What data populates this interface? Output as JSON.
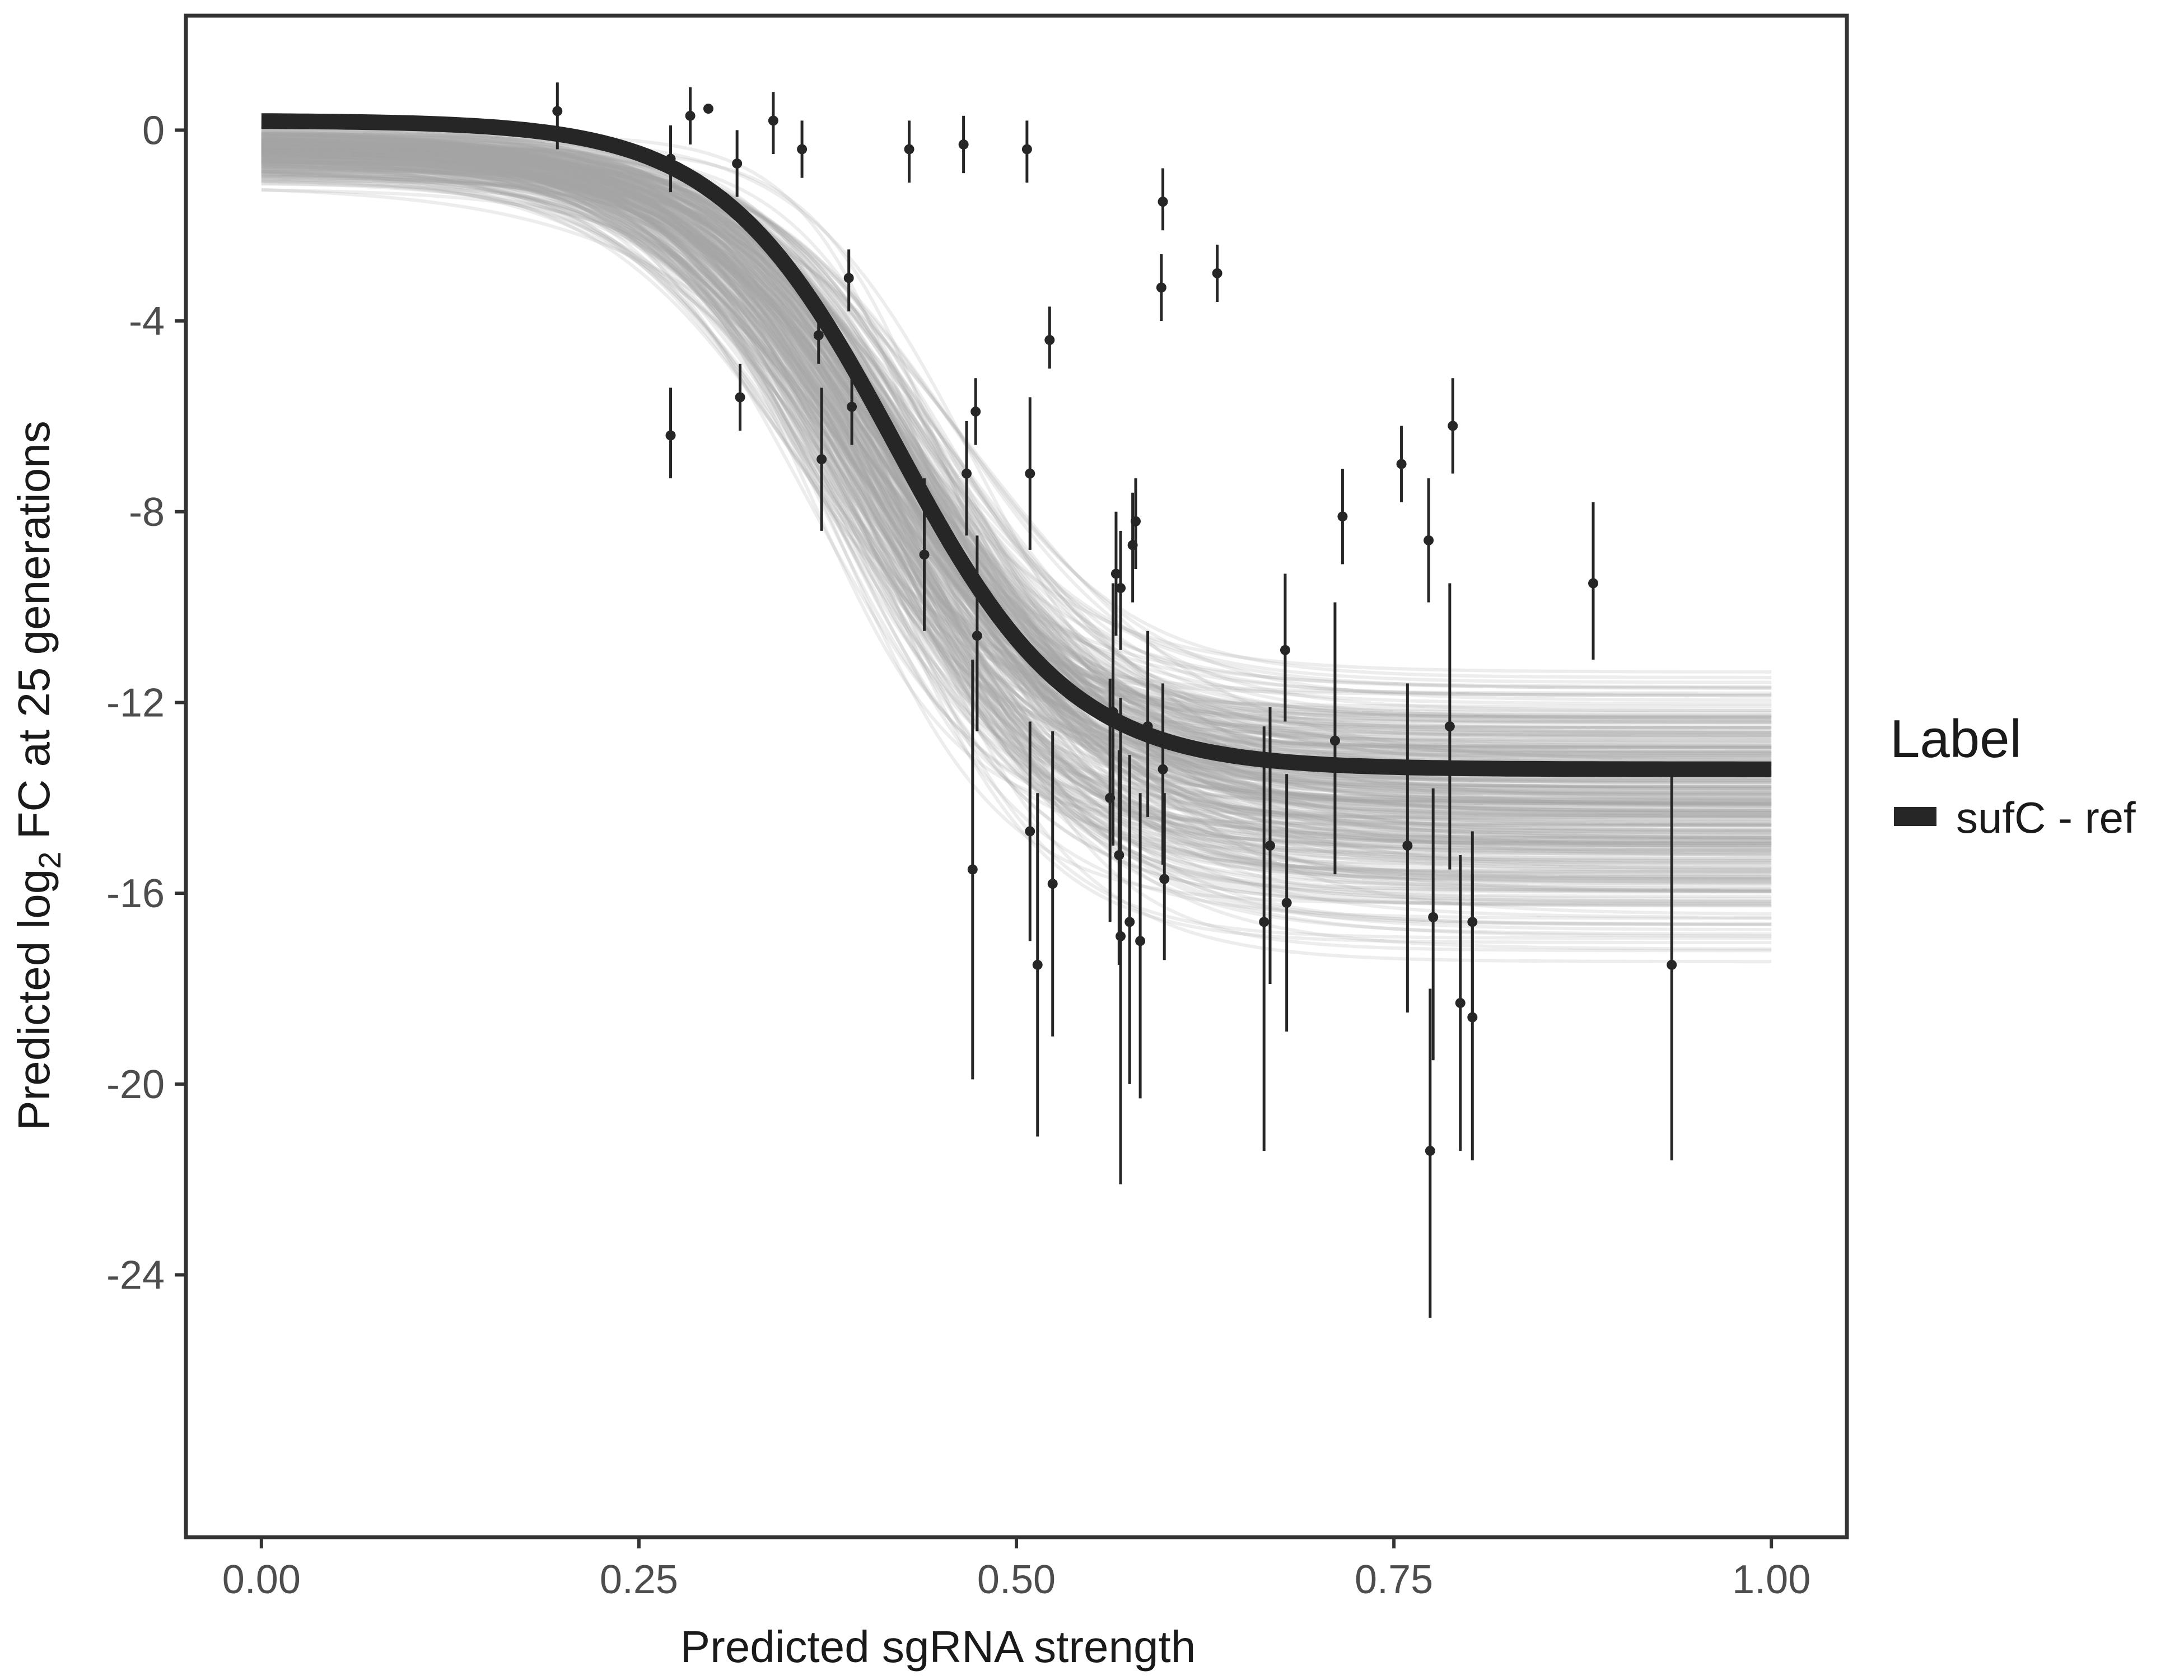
{
  "chart_data": {
    "type": "scatter",
    "xlabel": "Predicted sgRNA strength",
    "ylabel": {
      "prefix": "Predicted  log",
      "subscript": "2",
      "suffix": " FC at 25 generations"
    },
    "xlim": [
      -0.05,
      1.05
    ],
    "ylim": [
      -29.5,
      2.4
    ],
    "x_ticks": [
      {
        "value": 0.0,
        "label": "0.00"
      },
      {
        "value": 0.25,
        "label": "0.25"
      },
      {
        "value": 0.5,
        "label": "0.50"
      },
      {
        "value": 0.75,
        "label": "0.75"
      },
      {
        "value": 1.0,
        "label": "1.00"
      }
    ],
    "y_ticks": [
      {
        "value": 0,
        "label": "0"
      },
      {
        "value": -4,
        "label": "-4"
      },
      {
        "value": -8,
        "label": "-8"
      },
      {
        "value": -12,
        "label": "-12"
      },
      {
        "value": -16,
        "label": "-16"
      },
      {
        "value": -20,
        "label": "-20"
      },
      {
        "value": -24,
        "label": "-24"
      }
    ],
    "grid": false,
    "legend": {
      "title": "Label",
      "position": "right",
      "entries": [
        {
          "label": "sufC - ref",
          "color": "#262626"
        }
      ]
    },
    "colors": {
      "fit_line": "#262626",
      "posterior_draws": "#a6a6a6",
      "points": "#262626",
      "frame": "#333333"
    },
    "fit_curve": {
      "form": "logistic",
      "upper": 0.2,
      "lower": -13.4,
      "midpoint": 0.42,
      "scale": 0.058
    },
    "posterior_draws": {
      "count": 300,
      "upper_range": [
        -2.4,
        0.35
      ],
      "lower_range": [
        -18.6,
        -9.9
      ],
      "midpoint_range": [
        0.33,
        0.5
      ],
      "scale_range": [
        0.035,
        0.095
      ]
    },
    "points": [
      {
        "x": 0.196,
        "y": 0.4,
        "lo": -0.4,
        "hi": 1.0
      },
      {
        "x": 0.271,
        "y": -0.6,
        "lo": -1.3,
        "hi": 0.1
      },
      {
        "x": 0.271,
        "y": -6.4,
        "lo": -7.3,
        "hi": -5.4
      },
      {
        "x": 0.284,
        "y": 0.3,
        "lo": -0.3,
        "hi": 0.9
      },
      {
        "x": 0.296,
        "y": 0.45,
        "lo": 0.45,
        "hi": 0.45
      },
      {
        "x": 0.315,
        "y": -0.7,
        "lo": -1.4,
        "hi": 0.0
      },
      {
        "x": 0.317,
        "y": -5.6,
        "lo": -6.3,
        "hi": -4.9
      },
      {
        "x": 0.339,
        "y": 0.2,
        "lo": -0.5,
        "hi": 0.8
      },
      {
        "x": 0.358,
        "y": -0.4,
        "lo": -1.0,
        "hi": 0.2
      },
      {
        "x": 0.369,
        "y": -4.3,
        "lo": -4.9,
        "hi": -3.6
      },
      {
        "x": 0.371,
        "y": -6.9,
        "lo": -8.4,
        "hi": -5.4
      },
      {
        "x": 0.389,
        "y": -3.1,
        "lo": -3.8,
        "hi": -2.5
      },
      {
        "x": 0.391,
        "y": -5.8,
        "lo": -6.6,
        "hi": -5.1
      },
      {
        "x": 0.429,
        "y": -0.4,
        "lo": -1.1,
        "hi": 0.2
      },
      {
        "x": 0.439,
        "y": -8.9,
        "lo": -10.5,
        "hi": -7.3
      },
      {
        "x": 0.465,
        "y": -0.3,
        "lo": -0.9,
        "hi": 0.3
      },
      {
        "x": 0.467,
        "y": -7.2,
        "lo": -8.5,
        "hi": -6.1
      },
      {
        "x": 0.471,
        "y": -15.5,
        "lo": -19.9,
        "hi": -11.1
      },
      {
        "x": 0.473,
        "y": -5.9,
        "lo": -6.6,
        "hi": -5.2
      },
      {
        "x": 0.474,
        "y": -10.6,
        "lo": -12.6,
        "hi": -8.5
      },
      {
        "x": 0.507,
        "y": -0.4,
        "lo": -1.1,
        "hi": 0.2
      },
      {
        "x": 0.509,
        "y": -7.2,
        "lo": -8.8,
        "hi": -5.6
      },
      {
        "x": 0.509,
        "y": -14.7,
        "lo": -17.0,
        "hi": -12.4
      },
      {
        "x": 0.514,
        "y": -17.5,
        "lo": -21.1,
        "hi": -13.9
      },
      {
        "x": 0.522,
        "y": -4.4,
        "lo": -5.0,
        "hi": -3.7
      },
      {
        "x": 0.524,
        "y": -15.8,
        "lo": -19.0,
        "hi": -12.6
      },
      {
        "x": 0.562,
        "y": -14.0,
        "lo": -16.6,
        "hi": -11.5
      },
      {
        "x": 0.564,
        "y": -12.2,
        "lo": -15.0,
        "hi": -9.5
      },
      {
        "x": 0.566,
        "y": -9.3,
        "lo": -10.6,
        "hi": -8.0
      },
      {
        "x": 0.568,
        "y": -15.2,
        "lo": -17.5,
        "hi": -13.0
      },
      {
        "x": 0.569,
        "y": -16.9,
        "lo": -22.1,
        "hi": -11.9
      },
      {
        "x": 0.569,
        "y": -9.6,
        "lo": -10.9,
        "hi": -8.4
      },
      {
        "x": 0.575,
        "y": -16.6,
        "lo": -20.0,
        "hi": -13.1
      },
      {
        "x": 0.577,
        "y": -8.7,
        "lo": -9.9,
        "hi": -7.6
      },
      {
        "x": 0.579,
        "y": -8.2,
        "lo": -9.2,
        "hi": -7.3
      },
      {
        "x": 0.582,
        "y": -17.0,
        "lo": -20.3,
        "hi": -13.9
      },
      {
        "x": 0.587,
        "y": -12.5,
        "lo": -14.4,
        "hi": -10.5
      },
      {
        "x": 0.596,
        "y": -3.3,
        "lo": -4.0,
        "hi": -2.6
      },
      {
        "x": 0.597,
        "y": -1.5,
        "lo": -2.1,
        "hi": -0.8
      },
      {
        "x": 0.597,
        "y": -13.4,
        "lo": -15.4,
        "hi": -11.6
      },
      {
        "x": 0.598,
        "y": -15.7,
        "lo": -17.4,
        "hi": -13.9
      },
      {
        "x": 0.633,
        "y": -3.0,
        "lo": -3.6,
        "hi": -2.4
      },
      {
        "x": 0.664,
        "y": -16.6,
        "lo": -21.4,
        "hi": -12.5
      },
      {
        "x": 0.668,
        "y": -15.0,
        "lo": -17.9,
        "hi": -12.1
      },
      {
        "x": 0.678,
        "y": -10.9,
        "lo": -12.4,
        "hi": -9.3
      },
      {
        "x": 0.679,
        "y": -16.2,
        "lo": -18.9,
        "hi": -13.5
      },
      {
        "x": 0.711,
        "y": -12.8,
        "lo": -15.6,
        "hi": -9.9
      },
      {
        "x": 0.716,
        "y": -8.1,
        "lo": -9.1,
        "hi": -7.1
      },
      {
        "x": 0.755,
        "y": -7.0,
        "lo": -7.8,
        "hi": -6.2
      },
      {
        "x": 0.759,
        "y": -15.0,
        "lo": -18.5,
        "hi": -11.6
      },
      {
        "x": 0.773,
        "y": -8.6,
        "lo": -9.9,
        "hi": -7.3
      },
      {
        "x": 0.774,
        "y": -21.4,
        "lo": -24.9,
        "hi": -18.0
      },
      {
        "x": 0.776,
        "y": -16.5,
        "lo": -19.5,
        "hi": -13.8
      },
      {
        "x": 0.787,
        "y": -12.5,
        "lo": -15.5,
        "hi": -9.5
      },
      {
        "x": 0.789,
        "y": -6.2,
        "lo": -7.2,
        "hi": -5.2
      },
      {
        "x": 0.794,
        "y": -18.3,
        "lo": -21.4,
        "hi": -15.2
      },
      {
        "x": 0.802,
        "y": -16.6,
        "lo": -18.5,
        "hi": -14.7
      },
      {
        "x": 0.802,
        "y": -18.6,
        "lo": -21.6,
        "hi": -15.6
      },
      {
        "x": 0.882,
        "y": -9.5,
        "lo": -11.1,
        "hi": -7.8
      },
      {
        "x": 0.934,
        "y": -17.5,
        "lo": -21.6,
        "hi": -13.3
      }
    ]
  }
}
